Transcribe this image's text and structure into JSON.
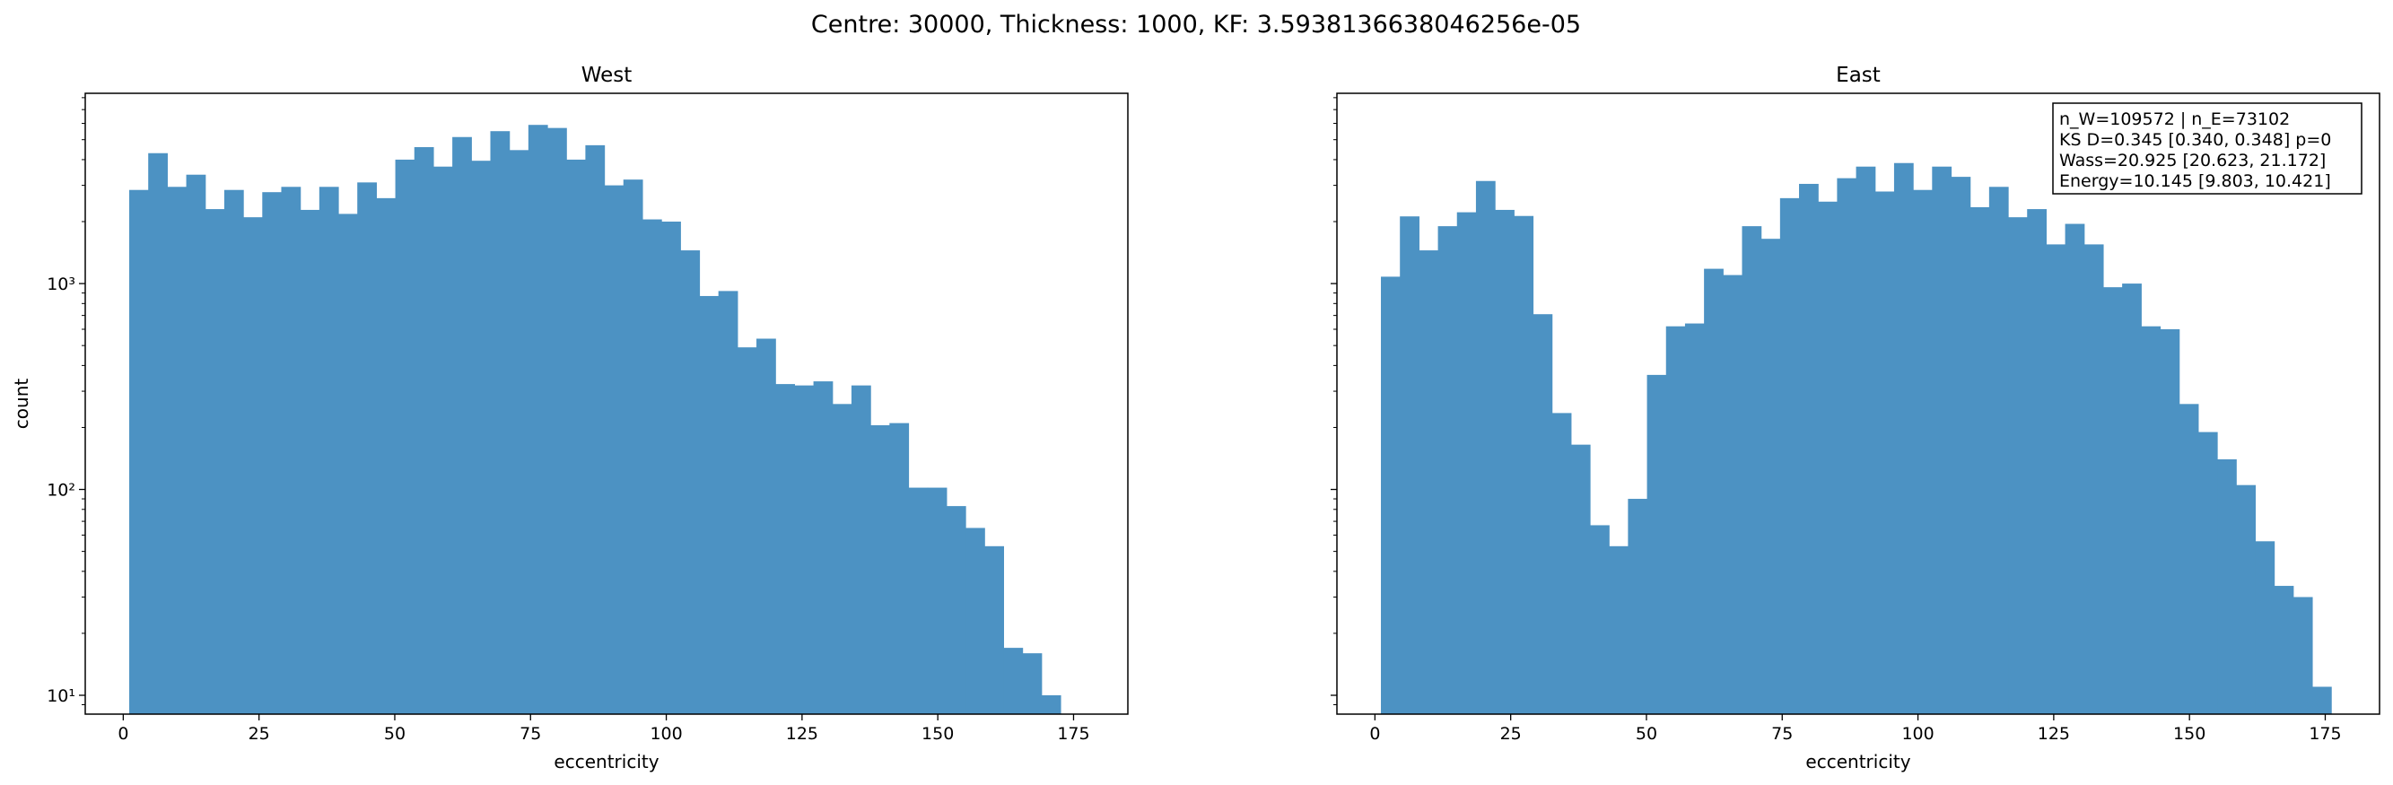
{
  "figure": {
    "suptitle": "Centre: 30000, Thickness: 1000, KF: 3.5938136638046256e-05"
  },
  "style": {
    "bar_color": "#4c92c3"
  },
  "chart_data": [
    {
      "type": "bar",
      "title": "West",
      "xlabel": "eccentricity",
      "ylabel": "count",
      "yscale": "log",
      "xlim": [
        -7,
        185
      ],
      "ylim": [
        8.1,
        8400
      ],
      "xticks": [
        0,
        25,
        50,
        75,
        100,
        125,
        150,
        175
      ],
      "yticks": [
        {
          "value": 10,
          "label": "10¹"
        },
        {
          "value": 100,
          "label": "10²"
        },
        {
          "value": 1000,
          "label": "10³"
        }
      ],
      "bin_edges": [
        1.1,
        4.6,
        8.1,
        11.6,
        15.1,
        18.6,
        22.1,
        25.6,
        29.1,
        32.6,
        36.1,
        39.6,
        43.1,
        46.6,
        50.1,
        53.6,
        57.1,
        60.6,
        64.1,
        67.6,
        71.1,
        74.6,
        78.1,
        81.6,
        85.1,
        88.6,
        92.1,
        95.6,
        99.1,
        102.6,
        106.1,
        109.6,
        113.1,
        116.6,
        120.1,
        123.6,
        127.1,
        130.6,
        134.1,
        137.6,
        141.1,
        144.6,
        148.1,
        151.6,
        155.1,
        158.6,
        162.1,
        165.6,
        169.1,
        172.6
      ],
      "counts": [
        2850,
        4300,
        2950,
        3380,
        2300,
        2850,
        2100,
        2780,
        2950,
        2280,
        2950,
        2180,
        3100,
        2600,
        4000,
        4600,
        3700,
        5150,
        3950,
        5500,
        4450,
        5900,
        5700,
        4000,
        4700,
        3000,
        3200,
        2050,
        2000,
        1450,
        870,
        920,
        490,
        540,
        325,
        320,
        335,
        260,
        320,
        205,
        210,
        102,
        102,
        83,
        65,
        53,
        17,
        16,
        10
      ]
    },
    {
      "type": "bar",
      "title": "East",
      "xlabel": "eccentricity",
      "ylabel": "",
      "yscale": "log",
      "xlim": [
        -7,
        185
      ],
      "ylim": [
        8.1,
        8400
      ],
      "xticks": [
        0,
        25,
        50,
        75,
        100,
        125,
        150,
        175
      ],
      "yticks": [
        {
          "value": 10,
          "label": ""
        },
        {
          "value": 100,
          "label": ""
        },
        {
          "value": 1000,
          "label": ""
        }
      ],
      "bin_edges": [
        1.1,
        4.6,
        8.1,
        11.6,
        15.1,
        18.6,
        22.1,
        25.6,
        29.1,
        32.6,
        36.1,
        39.6,
        43.1,
        46.6,
        50.1,
        53.6,
        57.1,
        60.6,
        64.1,
        67.6,
        71.1,
        74.6,
        78.1,
        81.6,
        85.1,
        88.6,
        92.1,
        95.6,
        99.1,
        102.6,
        106.1,
        109.6,
        113.1,
        116.6,
        120.1,
        123.6,
        127.1,
        130.6,
        134.1,
        137.6,
        141.1,
        144.6,
        148.1,
        151.6,
        155.1,
        158.6,
        162.1,
        165.6,
        169.1,
        172.6,
        176.1
      ],
      "counts": [
        1080,
        2120,
        1450,
        1900,
        2220,
        3150,
        2280,
        2130,
        710,
        235,
        165,
        67,
        53,
        90,
        360,
        620,
        640,
        1180,
        1100,
        1900,
        1650,
        2600,
        3050,
        2500,
        3250,
        3700,
        2800,
        3850,
        2850,
        3700,
        3300,
        2350,
        2950,
        2100,
        2300,
        1550,
        1950,
        1550,
        960,
        1000,
        620,
        600,
        260,
        190,
        140,
        105,
        56,
        34,
        30,
        11
      ]
    }
  ],
  "stats_box": {
    "lines": [
      "n_W=109572 | n_E=73102",
      "KS D=0.345 [0.340, 0.348]  p=0",
      "Wass=20.925 [20.623, 21.172]",
      "Energy=10.145 [9.803, 10.421]"
    ]
  }
}
